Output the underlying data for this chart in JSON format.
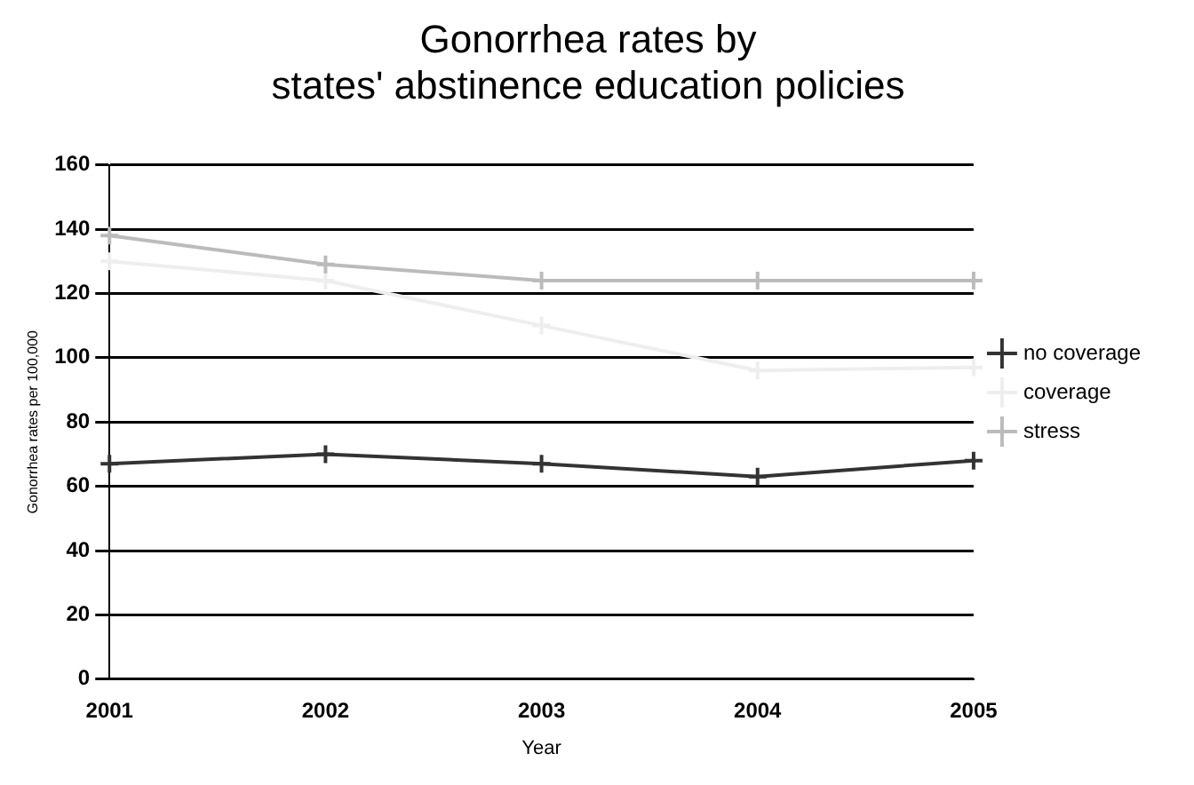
{
  "chart_data": {
    "type": "line",
    "title": "Gonorrhea rates by\nstates' abstinence education policies",
    "xlabel": "Year",
    "ylabel": "Gonorrhea rates per 100,000",
    "categories": [
      "2001",
      "2002",
      "2003",
      "2004",
      "2005"
    ],
    "series": [
      {
        "name": "no coverage",
        "color": "#333333",
        "values": [
          67,
          70,
          67,
          63,
          68
        ]
      },
      {
        "name": "coverage",
        "color": "#eeeeee",
        "values": [
          130,
          124,
          110,
          96,
          97
        ]
      },
      {
        "name": "stress",
        "color": "#bbbbbb",
        "values": [
          138,
          129,
          124,
          124,
          124
        ]
      }
    ],
    "ylim": [
      0,
      160
    ],
    "yticks": [
      0,
      20,
      40,
      60,
      80,
      100,
      120,
      140,
      160
    ],
    "grid": "y",
    "legend": "right",
    "marker": "cross",
    "line_style": "solid"
  }
}
